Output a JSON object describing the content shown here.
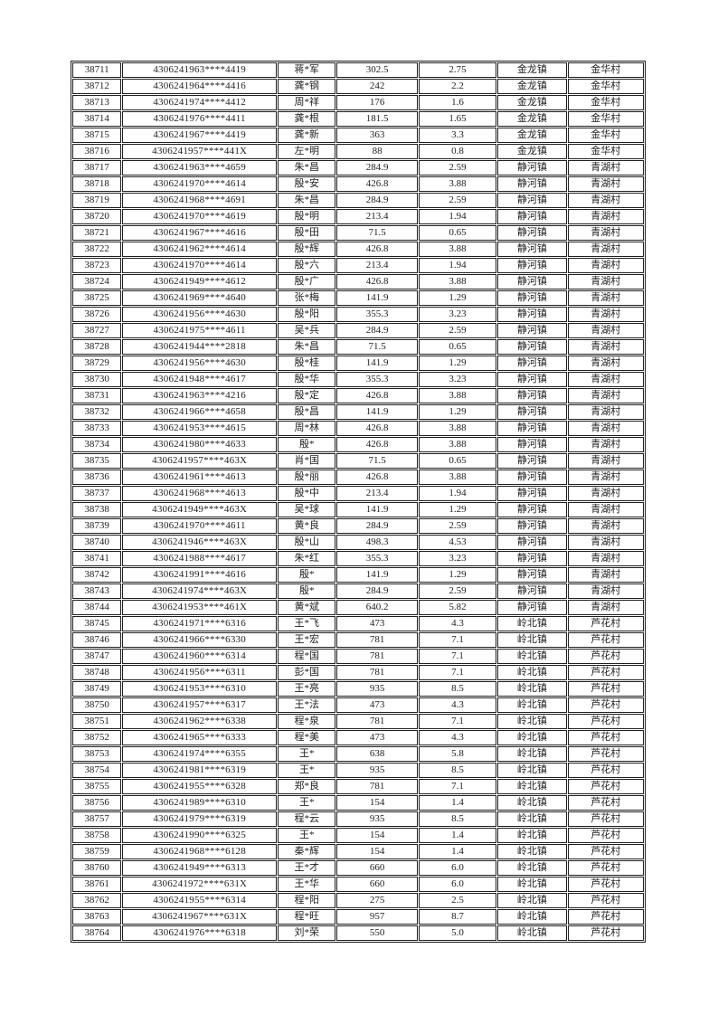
{
  "page": {
    "kind": "scanned-table-page"
  },
  "table": {
    "row_count": 54,
    "serial_range": {
      "first": "38711",
      "last": "38764"
    },
    "rows": [
      [
        "38711",
        "4306241963****4419",
        "蒋*军",
        "302.5",
        "2.75",
        "金龙镇",
        "金华村"
      ],
      [
        "38712",
        "4306241964****4416",
        "龚*钢",
        "242",
        "2.2",
        "金龙镇",
        "金华村"
      ],
      [
        "38713",
        "4306241974****4412",
        "周*祥",
        "176",
        "1.6",
        "金龙镇",
        "金华村"
      ],
      [
        "38714",
        "4306241976****4411",
        "龚*根",
        "181.5",
        "1.65",
        "金龙镇",
        "金华村"
      ],
      [
        "38715",
        "4306241967****4419",
        "龚*新",
        "363",
        "3.3",
        "金龙镇",
        "金华村"
      ],
      [
        "38716",
        "4306241957****441X",
        "左*明",
        "88",
        "0.8",
        "金龙镇",
        "金华村"
      ],
      [
        "38717",
        "4306241963****4659",
        "朱*昌",
        "284.9",
        "2.59",
        "静河镇",
        "青湖村"
      ],
      [
        "38718",
        "4306241970****4614",
        "殷*安",
        "426.8",
        "3.88",
        "静河镇",
        "青湖村"
      ],
      [
        "38719",
        "4306241968****4691",
        "朱*昌",
        "284.9",
        "2.59",
        "静河镇",
        "青湖村"
      ],
      [
        "38720",
        "4306241970****4619",
        "殷*明",
        "213.4",
        "1.94",
        "静河镇",
        "青湖村"
      ],
      [
        "38721",
        "4306241967****4616",
        "殷*田",
        "71.5",
        "0.65",
        "静河镇",
        "青湖村"
      ],
      [
        "38722",
        "4306241962****4614",
        "殷*辉",
        "426.8",
        "3.88",
        "静河镇",
        "青湖村"
      ],
      [
        "38723",
        "4306241970****4614",
        "殷*六",
        "213.4",
        "1.94",
        "静河镇",
        "青湖村"
      ],
      [
        "38724",
        "4306241949****4612",
        "殷*广",
        "426.8",
        "3.88",
        "静河镇",
        "青湖村"
      ],
      [
        "38725",
        "4306241969****4640",
        "张*梅",
        "141.9",
        "1.29",
        "静河镇",
        "青湖村"
      ],
      [
        "38726",
        "4306241956****4630",
        "殷*阳",
        "355.3",
        "3.23",
        "静河镇",
        "青湖村"
      ],
      [
        "38727",
        "4306241975****4611",
        "吴*兵",
        "284.9",
        "2.59",
        "静河镇",
        "青湖村"
      ],
      [
        "38728",
        "4306241944****2818",
        "朱*昌",
        "71.5",
        "0.65",
        "静河镇",
        "青湖村"
      ],
      [
        "38729",
        "4306241956****4630",
        "殷*桂",
        "141.9",
        "1.29",
        "静河镇",
        "青湖村"
      ],
      [
        "38730",
        "4306241948****4617",
        "殷*华",
        "355.3",
        "3.23",
        "静河镇",
        "青湖村"
      ],
      [
        "38731",
        "4306241963****4216",
        "殷*定",
        "426.8",
        "3.88",
        "静河镇",
        "青湖村"
      ],
      [
        "38732",
        "4306241966****4658",
        "殷*昌",
        "141.9",
        "1.29",
        "静河镇",
        "青湖村"
      ],
      [
        "38733",
        "4306241953****4615",
        "周*林",
        "426.8",
        "3.88",
        "静河镇",
        "青湖村"
      ],
      [
        "38734",
        "4306241980****4633",
        "殷*",
        "426.8",
        "3.88",
        "静河镇",
        "青湖村"
      ],
      [
        "38735",
        "4306241957****463X",
        "肖*国",
        "71.5",
        "0.65",
        "静河镇",
        "青湖村"
      ],
      [
        "38736",
        "4306241961****4613",
        "殷*丽",
        "426.8",
        "3.88",
        "静河镇",
        "青湖村"
      ],
      [
        "38737",
        "4306241968****4613",
        "殷*中",
        "213.4",
        "1.94",
        "静河镇",
        "青湖村"
      ],
      [
        "38738",
        "4306241949****463X",
        "吴*球",
        "141.9",
        "1.29",
        "静河镇",
        "青湖村"
      ],
      [
        "38739",
        "4306241970****4611",
        "黄*良",
        "284.9",
        "2.59",
        "静河镇",
        "青湖村"
      ],
      [
        "38740",
        "4306241946****463X",
        "殷*山",
        "498.3",
        "4.53",
        "静河镇",
        "青湖村"
      ],
      [
        "38741",
        "4306241988****4617",
        "朱*红",
        "355.3",
        "3.23",
        "静河镇",
        "青湖村"
      ],
      [
        "38742",
        "4306241991****4616",
        "殷*",
        "141.9",
        "1.29",
        "静河镇",
        "青湖村"
      ],
      [
        "38743",
        "4306241974****463X",
        "殷*",
        "284.9",
        "2.59",
        "静河镇",
        "青湖村"
      ],
      [
        "38744",
        "4306241953****461X",
        "黄*斌",
        "640.2",
        "5.82",
        "静河镇",
        "青湖村"
      ],
      [
        "38745",
        "4306241971****6316",
        "王*飞",
        "473",
        "4.3",
        "岭北镇",
        "芦花村"
      ],
      [
        "38746",
        "4306241966****6330",
        "王*宏",
        "781",
        "7.1",
        "岭北镇",
        "芦花村"
      ],
      [
        "38747",
        "4306241960****6314",
        "程*国",
        "781",
        "7.1",
        "岭北镇",
        "芦花村"
      ],
      [
        "38748",
        "4306241956****6311",
        "彭*国",
        "781",
        "7.1",
        "岭北镇",
        "芦花村"
      ],
      [
        "38749",
        "4306241953****6310",
        "王*亮",
        "935",
        "8.5",
        "岭北镇",
        "芦花村"
      ],
      [
        "38750",
        "4306241957****6317",
        "王*法",
        "473",
        "4.3",
        "岭北镇",
        "芦花村"
      ],
      [
        "38751",
        "4306241962****6338",
        "程*泉",
        "781",
        "7.1",
        "岭北镇",
        "芦花村"
      ],
      [
        "38752",
        "4306241965****6333",
        "程*美",
        "473",
        "4.3",
        "岭北镇",
        "芦花村"
      ],
      [
        "38753",
        "4306241974****6355",
        "王*",
        "638",
        "5.8",
        "岭北镇",
        "芦花村"
      ],
      [
        "38754",
        "4306241981****6319",
        "王*",
        "935",
        "8.5",
        "岭北镇",
        "芦花村"
      ],
      [
        "38755",
        "4306241955****6328",
        "郑*良",
        "781",
        "7.1",
        "岭北镇",
        "芦花村"
      ],
      [
        "38756",
        "4306241989****6310",
        "王*",
        "154",
        "1.4",
        "岭北镇",
        "芦花村"
      ],
      [
        "38757",
        "4306241979****6319",
        "程*云",
        "935",
        "8.5",
        "岭北镇",
        "芦花村"
      ],
      [
        "38758",
        "4306241990****6325",
        "王*",
        "154",
        "1.4",
        "岭北镇",
        "芦花村"
      ],
      [
        "38759",
        "4306241968****6128",
        "秦*辉",
        "154",
        "1.4",
        "岭北镇",
        "芦花村"
      ],
      [
        "38760",
        "4306241949****6313",
        "王*才",
        "660",
        "6.0",
        "岭北镇",
        "芦花村"
      ],
      [
        "38761",
        "4306241972****631X",
        "王*华",
        "660",
        "6.0",
        "岭北镇",
        "芦花村"
      ],
      [
        "38762",
        "4306241955****6314",
        "程*阳",
        "275",
        "2.5",
        "岭北镇",
        "芦花村"
      ],
      [
        "38763",
        "4306241967****631X",
        "程*旺",
        "957",
        "8.7",
        "岭北镇",
        "芦花村"
      ],
      [
        "38764",
        "4306241976****6318",
        "刘*荣",
        "550",
        "5.0",
        "岭北镇",
        "芦花村"
      ]
    ]
  }
}
